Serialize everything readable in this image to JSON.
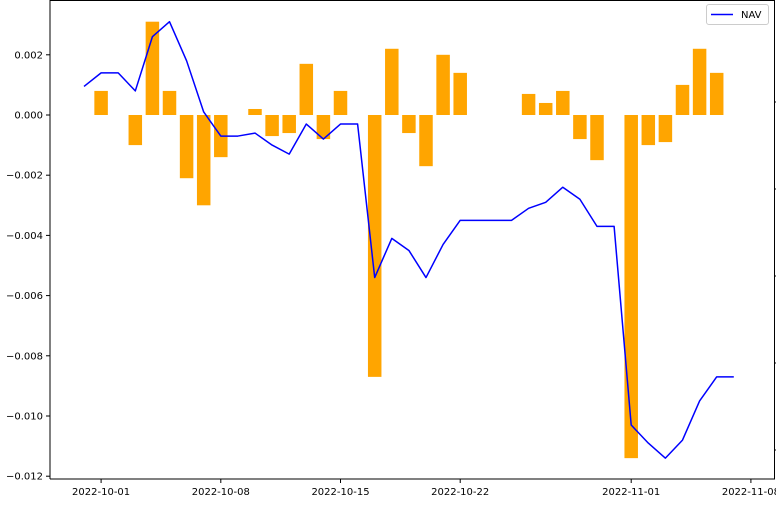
{
  "chart_data": {
    "type": "bar+line",
    "title": "",
    "xlabel": "",
    "ylabel": "",
    "ylim": [
      -0.0121,
      0.0038
    ],
    "y_ticks": [
      {
        "value": 0.002,
        "label": "0.002"
      },
      {
        "value": 0.0,
        "label": "0.000"
      },
      {
        "value": -0.002,
        "label": "−0.002"
      },
      {
        "value": -0.004,
        "label": "−0.004"
      },
      {
        "value": -0.006,
        "label": "−0.006"
      },
      {
        "value": -0.008,
        "label": "−0.008"
      },
      {
        "value": -0.01,
        "label": "−0.010"
      },
      {
        "value": -0.012,
        "label": "−0.012"
      }
    ],
    "x_ticks": [
      {
        "date": "2022-10-01",
        "label": "2022-10-01"
      },
      {
        "date": "2022-10-08",
        "label": "2022-10-08"
      },
      {
        "date": "2022-10-15",
        "label": "2022-10-15"
      },
      {
        "date": "2022-10-22",
        "label": "2022-10-22"
      },
      {
        "date": "2022-11-01",
        "label": "2022-11-01"
      },
      {
        "date": "2022-11-08",
        "label": "2022-11-08"
      }
    ],
    "right_axis_tick_count": 5,
    "grid": false,
    "legend": {
      "position": "top-right",
      "entries": [
        "NAV"
      ]
    },
    "colors": {
      "bar": "#ffa500",
      "line": "#0000ff"
    },
    "bars": [
      {
        "date": "2022-10-01",
        "value": 0.0008
      },
      {
        "date": "2022-10-03",
        "value": -0.001
      },
      {
        "date": "2022-10-04",
        "value": 0.0031
      },
      {
        "date": "2022-10-05",
        "value": 0.0008
      },
      {
        "date": "2022-10-06",
        "value": -0.0021
      },
      {
        "date": "2022-10-07",
        "value": -0.003
      },
      {
        "date": "2022-10-08",
        "value": -0.0014
      },
      {
        "date": "2022-10-10",
        "value": 0.0002
      },
      {
        "date": "2022-10-11",
        "value": -0.0007
      },
      {
        "date": "2022-10-12",
        "value": -0.0006
      },
      {
        "date": "2022-10-13",
        "value": 0.0017
      },
      {
        "date": "2022-10-14",
        "value": -0.0008
      },
      {
        "date": "2022-10-15",
        "value": 0.0008
      },
      {
        "date": "2022-10-17",
        "value": -0.0087
      },
      {
        "date": "2022-10-18",
        "value": 0.0022
      },
      {
        "date": "2022-10-19",
        "value": -0.0006
      },
      {
        "date": "2022-10-20",
        "value": -0.0017
      },
      {
        "date": "2022-10-21",
        "value": 0.002
      },
      {
        "date": "2022-10-22",
        "value": 0.0014
      },
      {
        "date": "2022-10-26",
        "value": 0.0007
      },
      {
        "date": "2022-10-27",
        "value": 0.0004
      },
      {
        "date": "2022-10-28",
        "value": 0.0008
      },
      {
        "date": "2022-10-29",
        "value": -0.0008
      },
      {
        "date": "2022-10-30",
        "value": -0.0015
      },
      {
        "date": "2022-11-01",
        "value": -0.0114
      },
      {
        "date": "2022-11-02",
        "value": -0.001
      },
      {
        "date": "2022-11-03",
        "value": -0.0009
      },
      {
        "date": "2022-11-04",
        "value": 0.001
      },
      {
        "date": "2022-11-05",
        "value": 0.0022
      },
      {
        "date": "2022-11-06",
        "value": 0.0014
      }
    ],
    "series": [
      {
        "name": "NAV",
        "points": [
          {
            "date": "2022-09-30",
            "value": 0.00095
          },
          {
            "date": "2022-10-01",
            "value": 0.0014
          },
          {
            "date": "2022-10-02",
            "value": 0.0014
          },
          {
            "date": "2022-10-03",
            "value": 0.0008
          },
          {
            "date": "2022-10-04",
            "value": 0.0026
          },
          {
            "date": "2022-10-05",
            "value": 0.0031
          },
          {
            "date": "2022-10-06",
            "value": 0.0018
          },
          {
            "date": "2022-10-07",
            "value": 0.0001
          },
          {
            "date": "2022-10-08",
            "value": -0.0007
          },
          {
            "date": "2022-10-09",
            "value": -0.0007
          },
          {
            "date": "2022-10-10",
            "value": -0.0006
          },
          {
            "date": "2022-10-11",
            "value": -0.001
          },
          {
            "date": "2022-10-12",
            "value": -0.0013
          },
          {
            "date": "2022-10-13",
            "value": -0.0003
          },
          {
            "date": "2022-10-14",
            "value": -0.0008
          },
          {
            "date": "2022-10-15",
            "value": -0.0003
          },
          {
            "date": "2022-10-16",
            "value": -0.0003
          },
          {
            "date": "2022-10-17",
            "value": -0.0054
          },
          {
            "date": "2022-10-18",
            "value": -0.0041
          },
          {
            "date": "2022-10-19",
            "value": -0.0045
          },
          {
            "date": "2022-10-20",
            "value": -0.0054
          },
          {
            "date": "2022-10-21",
            "value": -0.0043
          },
          {
            "date": "2022-10-22",
            "value": -0.0035
          },
          {
            "date": "2022-10-23",
            "value": -0.0035
          },
          {
            "date": "2022-10-24",
            "value": -0.0035
          },
          {
            "date": "2022-10-25",
            "value": -0.0035
          },
          {
            "date": "2022-10-26",
            "value": -0.0031
          },
          {
            "date": "2022-10-27",
            "value": -0.0029
          },
          {
            "date": "2022-10-28",
            "value": -0.0024
          },
          {
            "date": "2022-10-29",
            "value": -0.0028
          },
          {
            "date": "2022-10-30",
            "value": -0.0037
          },
          {
            "date": "2022-10-31",
            "value": -0.0037
          },
          {
            "date": "2022-11-01",
            "value": -0.0103
          },
          {
            "date": "2022-11-02",
            "value": -0.0109
          },
          {
            "date": "2022-11-03",
            "value": -0.0114
          },
          {
            "date": "2022-11-04",
            "value": -0.0108
          },
          {
            "date": "2022-11-05",
            "value": -0.0095
          },
          {
            "date": "2022-11-06",
            "value": -0.0087
          },
          {
            "date": "2022-11-07",
            "value": -0.0087
          }
        ]
      }
    ]
  }
}
